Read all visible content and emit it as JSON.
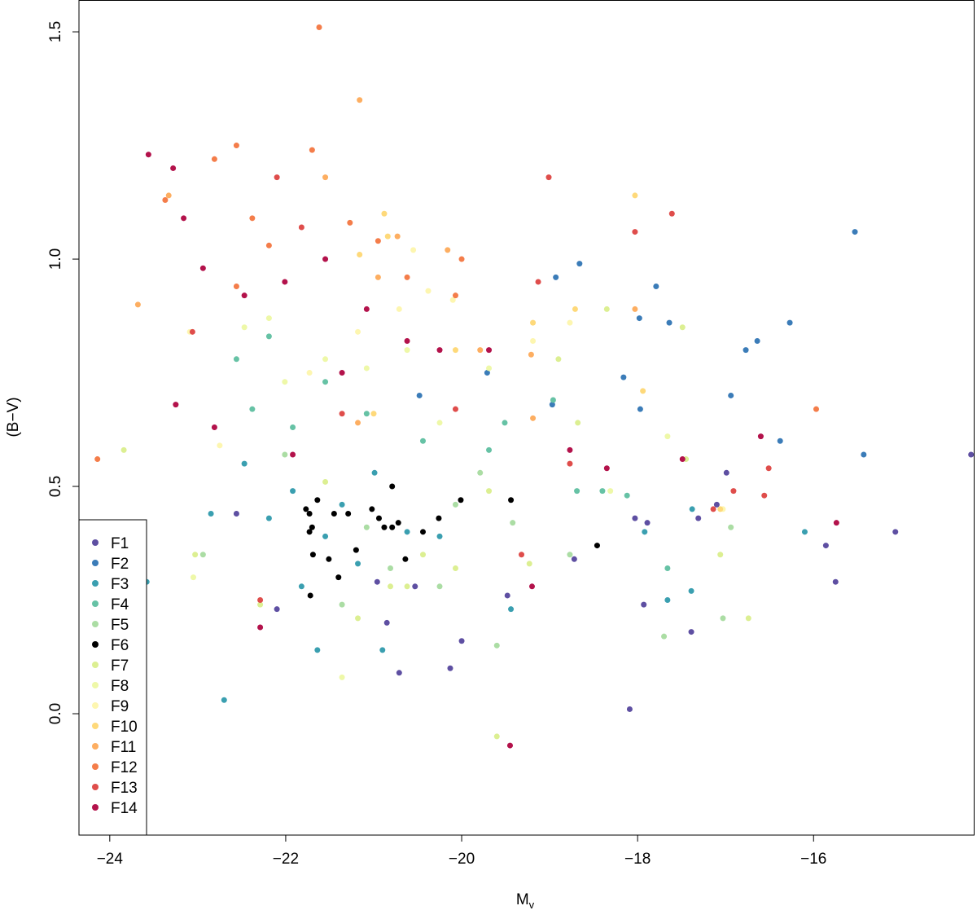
{
  "chart_data": {
    "type": "scatter",
    "xlabel": "M",
    "xlabel_subscript": "v",
    "ylabel": "(B−V)",
    "xlim": [
      -24.35,
      -14.17
    ],
    "ylim": [
      -0.267,
      1.57
    ],
    "xticks": [
      {
        "value": -24,
        "label": "−24"
      },
      {
        "value": -22,
        "label": "−22"
      },
      {
        "value": -20,
        "label": "−20"
      },
      {
        "value": -18,
        "label": "−18"
      },
      {
        "value": -16,
        "label": "−16"
      }
    ],
    "yticks": [
      {
        "value": 0,
        "label": "0.0"
      },
      {
        "value": 0.5,
        "label": "0.5"
      },
      {
        "value": 1,
        "label": "1.0"
      },
      {
        "value": 1.5,
        "label": "1.5"
      }
    ],
    "legend": "lower left",
    "series": [
      {
        "name": "F1",
        "color": "#5e4fa2",
        "x": [
          -14.21,
          -15.07,
          -15.75,
          -15.86,
          -16.99,
          -18.09,
          -17.39,
          -18.03,
          -17.89,
          -17.31,
          -17.93,
          -20.71,
          -20.13,
          -20.85,
          -20.53,
          -20.0,
          -19.48,
          -18.72,
          -22.1,
          -22.56,
          -20.96,
          -17.1
        ],
        "values": [
          0.57,
          0.4,
          0.29,
          0.37,
          0.53,
          0.01,
          0.18,
          0.43,
          0.42,
          0.43,
          0.24,
          0.09,
          0.1,
          0.2,
          0.28,
          0.16,
          0.26,
          0.34,
          0.23,
          0.44,
          0.29,
          0.46
        ]
      },
      {
        "name": "F2",
        "color": "#3b7cb8",
        "x": [
          -15.53,
          -16.27,
          -16.64,
          -16.77,
          -16.38,
          -15.43,
          -16.94,
          -17.64,
          -17.79,
          -17.98,
          -18.66,
          -18.93,
          -18.16,
          -17.97,
          -18.97,
          -19.71,
          -20.48
        ],
        "values": [
          1.06,
          0.86,
          0.82,
          0.8,
          0.6,
          0.57,
          0.7,
          0.86,
          0.94,
          0.87,
          0.99,
          0.96,
          0.74,
          0.67,
          0.68,
          0.75,
          0.7
        ]
      },
      {
        "name": "F3",
        "color": "#3a9fb0",
        "x": [
          -23.58,
          -22.7,
          -22.85,
          -21.64,
          -20.9,
          -16.1,
          -17.39,
          -17.66,
          -17.38,
          -17.92,
          -19.44,
          -20.62,
          -21.36,
          -21.92,
          -22.47,
          -20.99,
          -21.82,
          -21.18,
          -20.25,
          -22.19,
          -21.55
        ],
        "values": [
          0.29,
          0.03,
          0.44,
          0.14,
          0.14,
          0.4,
          0.27,
          0.25,
          0.45,
          0.4,
          0.23,
          0.4,
          0.46,
          0.49,
          0.55,
          0.53,
          0.28,
          0.33,
          0.39,
          0.43,
          0.39
        ]
      },
      {
        "name": "F4",
        "color": "#66c2a5",
        "x": [
          -22.56,
          -22.19,
          -21.55,
          -21.08,
          -19.51,
          -18.96,
          -18.69,
          -18.12,
          -17.66,
          -19.69,
          -22.38,
          -21.92,
          -20.44,
          -18.4
        ],
        "values": [
          0.78,
          0.83,
          0.73,
          0.66,
          0.64,
          0.69,
          0.49,
          0.48,
          0.32,
          0.58,
          0.67,
          0.63,
          0.6,
          0.49
        ]
      },
      {
        "name": "F5",
        "color": "#abdda4",
        "x": [
          -16.94,
          -17.03,
          -17.7,
          -18.77,
          -19.42,
          -20.07,
          -19.6,
          -22.94,
          -21.36,
          -20.81,
          -20.25,
          -19.79,
          -22.01,
          -21.08
        ],
        "values": [
          0.41,
          0.21,
          0.17,
          0.35,
          0.42,
          0.46,
          0.15,
          0.35,
          0.24,
          0.32,
          0.28,
          0.53,
          0.57,
          0.41
        ]
      },
      {
        "name": "F6",
        "color": "#000000",
        "x": [
          -21.73,
          -21.64,
          -21.77,
          -21.7,
          -21.73,
          -21.69,
          -21.72,
          -21.51,
          -21.4,
          -21.29,
          -21.2,
          -21.02,
          -20.94,
          -20.88,
          -20.79,
          -20.79,
          -20.72,
          -20.64,
          -20.44,
          -20.26,
          -20.01,
          -19.44,
          -18.46,
          -21.45
        ],
        "values": [
          0.44,
          0.47,
          0.45,
          0.41,
          0.4,
          0.35,
          0.26,
          0.34,
          0.3,
          0.44,
          0.36,
          0.45,
          0.43,
          0.41,
          0.41,
          0.5,
          0.42,
          0.34,
          0.4,
          0.43,
          0.47,
          0.47,
          0.37,
          0.44
        ]
      },
      {
        "name": "F7",
        "color": "#dcef92",
        "x": [
          -23.84,
          -19.6,
          -16.74,
          -17.06,
          -17.45,
          -17.49,
          -18.35,
          -18.9,
          -19.69,
          -20.44,
          -20.81,
          -21.18,
          -21.55,
          -23.03,
          -22.29,
          -20.07,
          -19.23,
          -18.68,
          -20.62
        ],
        "values": [
          0.58,
          -0.05,
          0.21,
          0.35,
          0.56,
          0.85,
          0.89,
          0.78,
          0.49,
          0.35,
          0.28,
          0.21,
          0.51,
          0.35,
          0.24,
          0.32,
          0.33,
          0.64,
          0.28
        ]
      },
      {
        "name": "F8",
        "color": "#eef8a8",
        "x": [
          -21.36,
          -23.05,
          -18.31,
          -17.66,
          -19.69,
          -21.55,
          -22.19,
          -21.08,
          -20.62,
          -22.01,
          -20.25,
          -22.47
        ],
        "values": [
          0.08,
          0.3,
          0.49,
          0.61,
          0.76,
          0.78,
          0.87,
          0.76,
          0.8,
          0.73,
          0.64,
          0.85
        ]
      },
      {
        "name": "F9",
        "color": "#fdf6b0",
        "x": [
          -20.55,
          -20.38,
          -23.09,
          -22.75,
          -21.18,
          -20.71,
          -20.1,
          -19.19,
          -18.77,
          -17.03,
          -21.73
        ],
        "values": [
          1.02,
          0.93,
          0.84,
          0.59,
          0.84,
          0.89,
          0.91,
          0.82,
          0.86,
          0.45,
          0.75
        ]
      },
      {
        "name": "F10",
        "color": "#fed97a",
        "x": [
          -18.03,
          -18.71,
          -20.88,
          -20.84,
          -21.16,
          -17.94,
          -17.06,
          -19.19,
          -20.07,
          -21.0
        ],
        "values": [
          1.14,
          0.89,
          1.1,
          1.05,
          1.01,
          0.71,
          0.45,
          0.86,
          0.8,
          0.66
        ]
      },
      {
        "name": "F11",
        "color": "#fdae61",
        "x": [
          -21.16,
          -23.33,
          -23.68,
          -21.55,
          -20.16,
          -20.73,
          -19.21,
          -19.19,
          -19.79,
          -20.95,
          -21.18,
          -18.03
        ],
        "values": [
          1.35,
          1.14,
          0.9,
          1.18,
          1.02,
          1.05,
          0.79,
          0.65,
          0.8,
          0.96,
          0.64,
          0.89
        ]
      },
      {
        "name": "F12",
        "color": "#f47d4a",
        "x": [
          -21.62,
          -24.14,
          -22.56,
          -22.81,
          -23.37,
          -21.7,
          -21.27,
          -22.38,
          -20.95,
          -20.0,
          -15.97,
          -22.56,
          -22.19,
          -20.07,
          -20.62
        ],
        "values": [
          1.51,
          0.56,
          1.25,
          1.22,
          1.13,
          1.24,
          1.08,
          1.09,
          1.04,
          1.0,
          0.67,
          0.94,
          1.03,
          0.92,
          0.96
        ]
      },
      {
        "name": "F13",
        "color": "#df4d4b",
        "x": [
          -19.01,
          -18.03,
          -17.61,
          -16.56,
          -16.91,
          -17.14,
          -16.51,
          -19.13,
          -22.29,
          -19.32,
          -18.77,
          -21.82,
          -22.1,
          -21.36,
          -23.06,
          -20.07
        ],
        "values": [
          1.18,
          1.06,
          1.1,
          0.48,
          0.49,
          0.45,
          0.54,
          0.95,
          0.25,
          0.35,
          0.55,
          1.07,
          1.18,
          0.66,
          0.84,
          0.67
        ]
      },
      {
        "name": "F14",
        "color": "#b3124b",
        "x": [
          -23.56,
          -23.28,
          -23.16,
          -23.25,
          -22.81,
          -19.45,
          -15.74,
          -16.6,
          -17.49,
          -18.35,
          -18.77,
          -19.2,
          -22.29,
          -22.47,
          -22.94,
          -22.01,
          -21.55,
          -21.08,
          -20.62,
          -21.92,
          -21.36,
          -20.25,
          -19.69
        ],
        "values": [
          1.23,
          1.2,
          1.09,
          0.68,
          0.63,
          -0.07,
          0.42,
          0.61,
          0.56,
          0.54,
          0.58,
          0.28,
          0.19,
          0.92,
          0.98,
          0.95,
          1.0,
          0.89,
          0.82,
          0.57,
          0.75,
          0.8,
          0.8
        ]
      }
    ]
  }
}
